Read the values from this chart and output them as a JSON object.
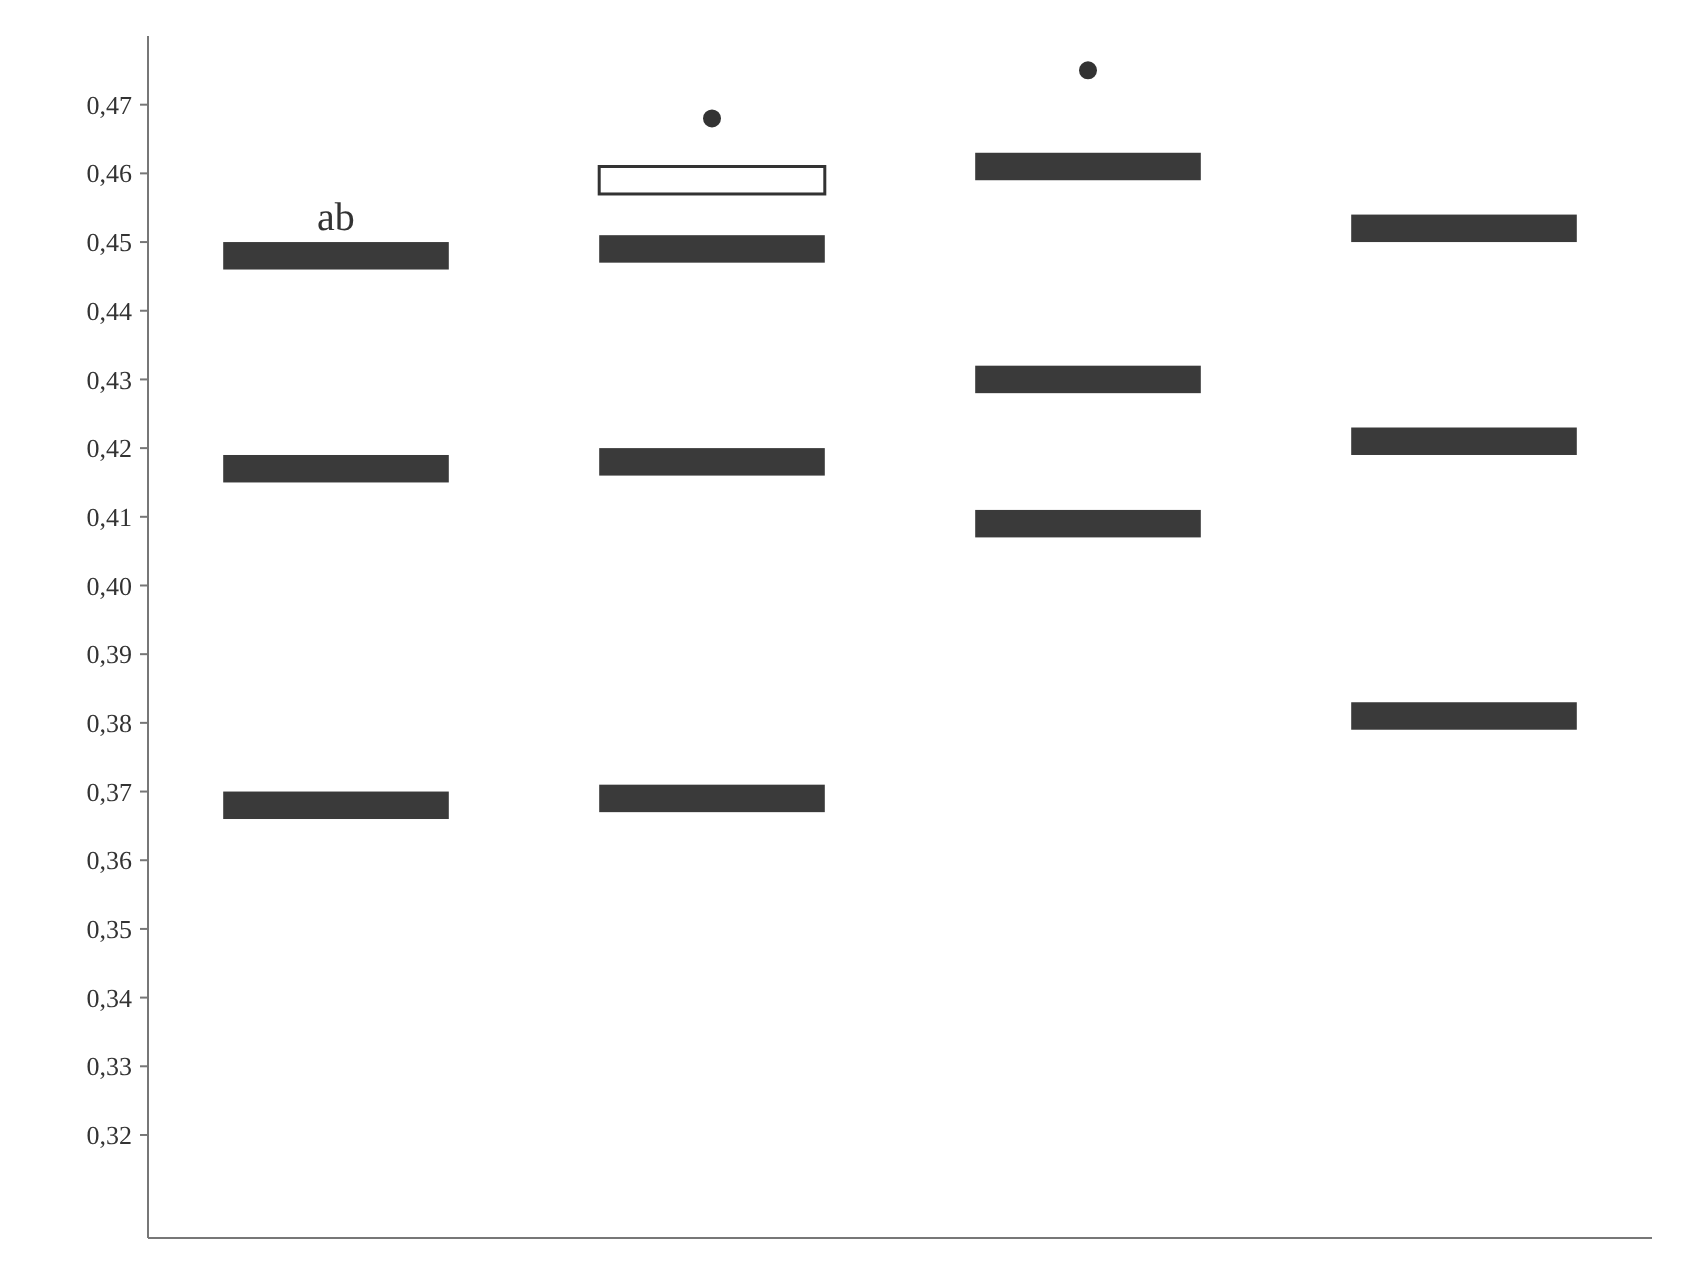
{
  "chart_data": {
    "type": "bar",
    "categories": [
      null,
      null,
      null,
      null
    ],
    "series": [
      {
        "color": "#3a3a3a",
        "base": [
          0.446,
          0.447,
          0.459,
          0.45
        ],
        "values": [
          0.004,
          0.004,
          0.004,
          0.004
        ]
      },
      {
        "color": "#3a3a3a",
        "base": [
          0.415,
          0.416,
          0.428,
          0.419
        ],
        "values": [
          0.004,
          0.004,
          0.004,
          0.004
        ]
      },
      {
        "color": "#3a3a3a",
        "base": [
          0.366,
          0.367,
          0.407,
          0.379
        ],
        "values": [
          0.004,
          0.004,
          0.004,
          0.004
        ]
      },
      {
        "color": "#ffffff",
        "base": [
          null,
          0.457,
          null,
          null
        ],
        "values": [
          null,
          0.004,
          null,
          null
        ]
      },
      {
        "type": "scatter",
        "color": "#333333",
        "marker": "circle",
        "values": [
          null,
          0.468,
          0.475,
          null
        ]
      }
    ],
    "annotations": [
      "ab"
    ],
    "ylim": [
      0.305,
      0.48
    ],
    "yticks": [
      {
        "value": 0.32,
        "label": "0,32"
      },
      {
        "value": 0.33,
        "label": "0,33"
      },
      {
        "value": 0.34,
        "label": "0,34"
      },
      {
        "value": 0.35,
        "label": "0,35"
      },
      {
        "value": 0.36,
        "label": "0,36"
      },
      {
        "value": 0.37,
        "label": "0,37"
      },
      {
        "value": 0.38,
        "label": "0,38"
      },
      {
        "value": 0.39,
        "label": "0,39"
      },
      {
        "value": 0.4,
        "label": "0,40"
      },
      {
        "value": 0.41,
        "label": "0,41"
      },
      {
        "value": 0.42,
        "label": "0,42"
      },
      {
        "value": 0.43,
        "label": "0,43"
      },
      {
        "value": 0.44,
        "label": "0,44"
      },
      {
        "value": 0.45,
        "label": "0,45"
      },
      {
        "value": 0.46,
        "label": "0,46"
      },
      {
        "value": 0.47,
        "label": "0,47"
      }
    ],
    "tick_labels": "y",
    "grid": false
  }
}
